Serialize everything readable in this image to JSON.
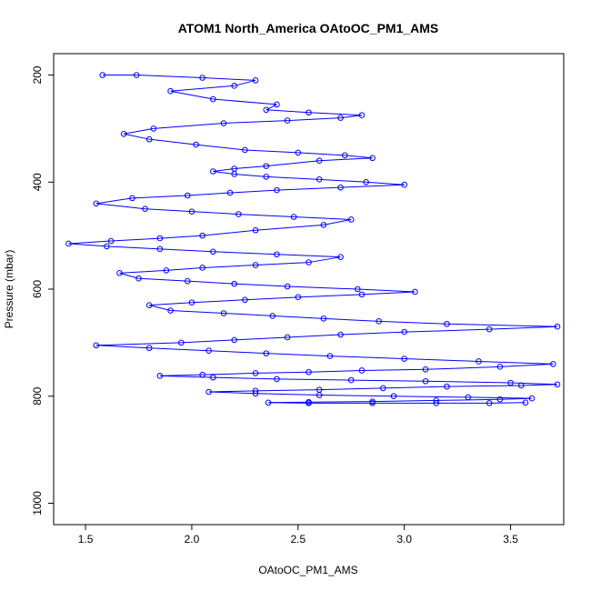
{
  "chart_data": {
    "type": "scatter",
    "title": "ATOM1 North_America OAtoOC_PM1_AMS",
    "xlabel": "OAtoOC_PM1_AMS",
    "ylabel": "Pressure (mbar)",
    "xlim": [
      1.35,
      3.75
    ],
    "ylim": [
      1040,
      160
    ],
    "y_reversed": true,
    "x_ticks": [
      1.5,
      2.0,
      2.5,
      3.0,
      3.5
    ],
    "x_tick_labels": [
      "1.5",
      "2.0",
      "2.5",
      "3.0",
      "3.5"
    ],
    "y_ticks": [
      200,
      400,
      600,
      800,
      1000
    ],
    "y_tick_labels": [
      "200",
      "400",
      "600",
      "800",
      "1000"
    ],
    "grid": false,
    "legend": "none",
    "colors": {
      "series": "#0000ff",
      "axis": "#000000"
    },
    "series": [
      {
        "style": "points-connected",
        "x": [
          1.58,
          1.74,
          2.05,
          2.3,
          2.2,
          1.9,
          2.1,
          2.4,
          2.35,
          2.55,
          2.8,
          2.7,
          2.45,
          2.15,
          1.82,
          1.68,
          1.8,
          2.02,
          2.25,
          2.5,
          2.72,
          2.85,
          2.6,
          2.35,
          2.2,
          2.1,
          2.2,
          2.35,
          2.6,
          2.82,
          3.0,
          2.7,
          2.4,
          2.18,
          1.98,
          1.72,
          1.55,
          1.78,
          2.0,
          2.22,
          2.48,
          2.75,
          2.62,
          2.3,
          2.05,
          1.85,
          1.62,
          1.42,
          1.6,
          1.85,
          2.1,
          2.4,
          2.7,
          2.55,
          2.3,
          2.05,
          1.88,
          1.66,
          1.75,
          1.98,
          2.2,
          2.45,
          2.78,
          3.05,
          2.8,
          2.5,
          2.25,
          2.0,
          1.8,
          1.9,
          2.15,
          2.38,
          2.62,
          2.88,
          3.2,
          3.72,
          3.4,
          3.0,
          2.7,
          2.45,
          2.2,
          1.95,
          1.55,
          1.8,
          2.08,
          2.35,
          2.65,
          3.0,
          3.35,
          3.7,
          3.45,
          3.1,
          2.8,
          2.55,
          2.3,
          2.05,
          1.85,
          2.1,
          2.4,
          2.75,
          3.1,
          3.5,
          3.72,
          3.55,
          3.2,
          2.9,
          2.6,
          2.3,
          2.08,
          2.3,
          2.6,
          2.95,
          3.3,
          3.6,
          3.45,
          3.15,
          2.85,
          2.55,
          2.36,
          2.55,
          2.85,
          3.15,
          3.4,
          3.57
        ],
        "y": [
          200,
          200,
          205,
          210,
          220,
          230,
          245,
          255,
          265,
          270,
          275,
          280,
          285,
          290,
          300,
          310,
          320,
          330,
          340,
          345,
          350,
          355,
          360,
          370,
          375,
          380,
          385,
          390,
          395,
          400,
          405,
          410,
          415,
          420,
          425,
          430,
          440,
          450,
          455,
          460,
          465,
          470,
          480,
          490,
          500,
          505,
          510,
          515,
          520,
          525,
          530,
          535,
          540,
          550,
          555,
          560,
          565,
          570,
          580,
          585,
          590,
          595,
          600,
          605,
          610,
          615,
          620,
          625,
          630,
          640,
          645,
          650,
          655,
          660,
          665,
          670,
          675,
          680,
          685,
          690,
          695,
          700,
          705,
          710,
          715,
          720,
          725,
          730,
          735,
          740,
          745,
          750,
          752,
          755,
          757,
          760,
          762,
          765,
          768,
          770,
          772,
          775,
          778,
          780,
          782,
          785,
          788,
          790,
          792,
          795,
          798,
          800,
          802,
          804,
          806,
          808,
          810,
          811,
          812,
          813,
          813,
          813,
          813,
          812
        ]
      }
    ]
  }
}
